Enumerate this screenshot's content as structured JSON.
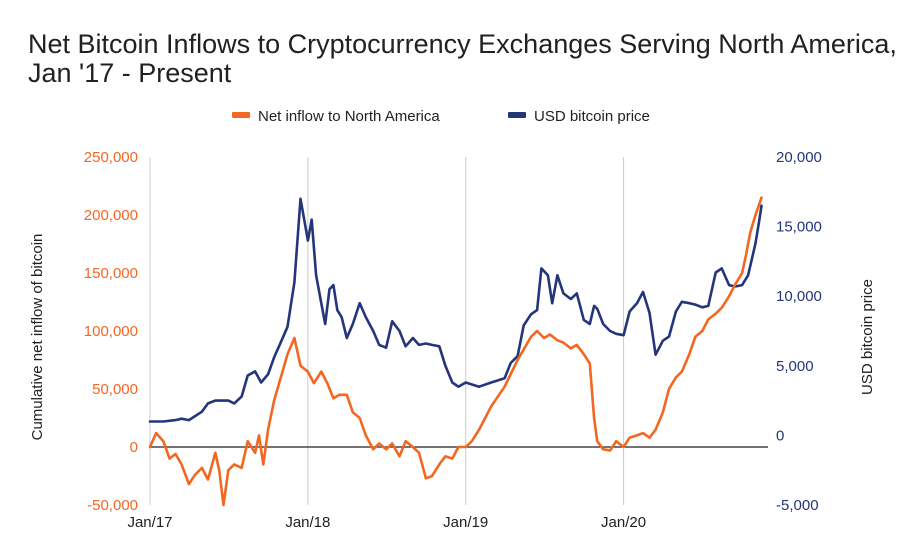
{
  "colors": {
    "inflow": "#f26722",
    "price": "#24357a",
    "grid": "#cccccc",
    "zero": "#222222",
    "text": "#212121"
  },
  "chart_data": {
    "type": "line",
    "title": "Net Bitcoin Inflows to Cryptocurrency Exchanges Serving North America, Jan '17 - Present",
    "ylabel": "Cumulative net inflow of bitcoin",
    "y2label": "USD bitcoin price",
    "xlabel": "",
    "legend_position": "top-center",
    "grid": "vertical at year marks",
    "x_range": [
      "2017-01",
      "2020-11"
    ],
    "ylim": [
      -50000,
      250000
    ],
    "y2lim": [
      -5000,
      20000
    ],
    "x_ticks": [
      "Jan/17",
      "Jan/18",
      "Jan/19",
      "Jan/20"
    ],
    "y_ticks": [
      "-50,000",
      "0",
      "50,000",
      "100,000",
      "150,000",
      "200,000",
      "250,000"
    ],
    "y2_ticks": [
      "-5,000",
      "0",
      "5,000",
      "10,000",
      "15,000",
      "20,000"
    ],
    "series": [
      {
        "name": "Net inflow to North America",
        "axis": "left",
        "points": [
          [
            "2017-01-01",
            0
          ],
          [
            "2017-01-15",
            12000
          ],
          [
            "2017-02-01",
            5000
          ],
          [
            "2017-02-15",
            -10000
          ],
          [
            "2017-03-01",
            -6000
          ],
          [
            "2017-03-15",
            -15000
          ],
          [
            "2017-04-01",
            -32000
          ],
          [
            "2017-04-15",
            -24000
          ],
          [
            "2017-05-01",
            -18000
          ],
          [
            "2017-05-15",
            -28000
          ],
          [
            "2017-06-01",
            -5000
          ],
          [
            "2017-06-10",
            -20000
          ],
          [
            "2017-06-20",
            -50000
          ],
          [
            "2017-07-01",
            -20000
          ],
          [
            "2017-07-15",
            -15000
          ],
          [
            "2017-08-01",
            -18000
          ],
          [
            "2017-08-15",
            5000
          ],
          [
            "2017-09-01",
            -5000
          ],
          [
            "2017-09-10",
            10000
          ],
          [
            "2017-09-20",
            -15000
          ],
          [
            "2017-10-01",
            15000
          ],
          [
            "2017-10-15",
            40000
          ],
          [
            "2017-11-01",
            62000
          ],
          [
            "2017-11-15",
            80000
          ],
          [
            "2017-12-01",
            94000
          ],
          [
            "2017-12-15",
            70000
          ],
          [
            "2018-01-01",
            65000
          ],
          [
            "2018-01-15",
            55000
          ],
          [
            "2018-02-01",
            65000
          ],
          [
            "2018-02-15",
            55000
          ],
          [
            "2018-03-01",
            42000
          ],
          [
            "2018-03-15",
            45000
          ],
          [
            "2018-04-01",
            45000
          ],
          [
            "2018-04-15",
            30000
          ],
          [
            "2018-05-01",
            25000
          ],
          [
            "2018-05-15",
            10000
          ],
          [
            "2018-06-01",
            -2000
          ],
          [
            "2018-06-15",
            3000
          ],
          [
            "2018-07-01",
            -2000
          ],
          [
            "2018-07-15",
            3000
          ],
          [
            "2018-08-01",
            -8000
          ],
          [
            "2018-08-15",
            5000
          ],
          [
            "2018-09-01",
            0
          ],
          [
            "2018-09-15",
            -5000
          ],
          [
            "2018-10-01",
            -27000
          ],
          [
            "2018-10-15",
            -25000
          ],
          [
            "2018-11-01",
            -15000
          ],
          [
            "2018-11-15",
            -8000
          ],
          [
            "2018-12-01",
            -10000
          ],
          [
            "2018-12-15",
            0
          ],
          [
            "2019-01-01",
            0
          ],
          [
            "2019-01-15",
            5000
          ],
          [
            "2019-02-01",
            15000
          ],
          [
            "2019-03-01",
            35000
          ],
          [
            "2019-04-01",
            52000
          ],
          [
            "2019-05-01",
            75000
          ],
          [
            "2019-06-01",
            95000
          ],
          [
            "2019-06-15",
            100000
          ],
          [
            "2019-07-01",
            94000
          ],
          [
            "2019-07-15",
            97000
          ],
          [
            "2019-08-01",
            92000
          ],
          [
            "2019-08-15",
            90000
          ],
          [
            "2019-09-01",
            85000
          ],
          [
            "2019-09-15",
            88000
          ],
          [
            "2019-10-01",
            80000
          ],
          [
            "2019-10-15",
            72000
          ],
          [
            "2019-10-25",
            25000
          ],
          [
            "2019-11-01",
            5000
          ],
          [
            "2019-11-15",
            -2000
          ],
          [
            "2019-12-01",
            -3000
          ],
          [
            "2019-12-15",
            5000
          ],
          [
            "2020-01-01",
            0
          ],
          [
            "2020-01-15",
            8000
          ],
          [
            "2020-02-01",
            10000
          ],
          [
            "2020-02-15",
            12000
          ],
          [
            "2020-03-01",
            8000
          ],
          [
            "2020-03-15",
            15000
          ],
          [
            "2020-04-01",
            30000
          ],
          [
            "2020-04-15",
            50000
          ],
          [
            "2020-05-01",
            60000
          ],
          [
            "2020-05-15",
            65000
          ],
          [
            "2020-06-01",
            80000
          ],
          [
            "2020-06-15",
            95000
          ],
          [
            "2020-07-01",
            100000
          ],
          [
            "2020-07-15",
            110000
          ],
          [
            "2020-08-01",
            115000
          ],
          [
            "2020-08-15",
            120000
          ],
          [
            "2020-09-01",
            130000
          ],
          [
            "2020-09-15",
            140000
          ],
          [
            "2020-10-01",
            150000
          ],
          [
            "2020-10-10",
            165000
          ],
          [
            "2020-10-20",
            185000
          ],
          [
            "2020-11-01",
            200000
          ],
          [
            "2020-11-15",
            215000
          ]
        ]
      },
      {
        "name": "USD bitcoin price",
        "axis": "right",
        "points": [
          [
            "2017-01-01",
            1000
          ],
          [
            "2017-02-01",
            1000
          ],
          [
            "2017-03-01",
            1100
          ],
          [
            "2017-03-15",
            1200
          ],
          [
            "2017-04-01",
            1100
          ],
          [
            "2017-05-01",
            1700
          ],
          [
            "2017-05-15",
            2300
          ],
          [
            "2017-06-01",
            2500
          ],
          [
            "2017-06-15",
            2500
          ],
          [
            "2017-07-01",
            2500
          ],
          [
            "2017-07-15",
            2300
          ],
          [
            "2017-08-01",
            2800
          ],
          [
            "2017-08-15",
            4300
          ],
          [
            "2017-09-01",
            4600
          ],
          [
            "2017-09-15",
            3800
          ],
          [
            "2017-10-01",
            4400
          ],
          [
            "2017-10-15",
            5600
          ],
          [
            "2017-11-01",
            6800
          ],
          [
            "2017-11-15",
            7800
          ],
          [
            "2017-12-01",
            11000
          ],
          [
            "2017-12-15",
            17000
          ],
          [
            "2018-01-01",
            14000
          ],
          [
            "2018-01-10",
            15500
          ],
          [
            "2018-01-20",
            11500
          ],
          [
            "2018-02-01",
            9500
          ],
          [
            "2018-02-10",
            8000
          ],
          [
            "2018-02-20",
            10500
          ],
          [
            "2018-03-01",
            10800
          ],
          [
            "2018-03-10",
            9000
          ],
          [
            "2018-03-20",
            8500
          ],
          [
            "2018-04-01",
            7000
          ],
          [
            "2018-04-15",
            8000
          ],
          [
            "2018-05-01",
            9500
          ],
          [
            "2018-05-15",
            8500
          ],
          [
            "2018-06-01",
            7500
          ],
          [
            "2018-06-15",
            6500
          ],
          [
            "2018-07-01",
            6300
          ],
          [
            "2018-07-15",
            8200
          ],
          [
            "2018-08-01",
            7500
          ],
          [
            "2018-08-15",
            6400
          ],
          [
            "2018-09-01",
            7000
          ],
          [
            "2018-09-15",
            6500
          ],
          [
            "2018-10-01",
            6600
          ],
          [
            "2018-10-15",
            6500
          ],
          [
            "2018-11-01",
            6400
          ],
          [
            "2018-11-15",
            5000
          ],
          [
            "2018-12-01",
            3800
          ],
          [
            "2018-12-15",
            3500
          ],
          [
            "2019-01-01",
            3800
          ],
          [
            "2019-02-01",
            3500
          ],
          [
            "2019-03-01",
            3800
          ],
          [
            "2019-04-01",
            4100
          ],
          [
            "2019-04-15",
            5200
          ],
          [
            "2019-05-01",
            5700
          ],
          [
            "2019-05-15",
            7900
          ],
          [
            "2019-06-01",
            8700
          ],
          [
            "2019-06-15",
            9000
          ],
          [
            "2019-06-25",
            12000
          ],
          [
            "2019-07-10",
            11500
          ],
          [
            "2019-07-20",
            9500
          ],
          [
            "2019-08-01",
            11500
          ],
          [
            "2019-08-15",
            10200
          ],
          [
            "2019-09-01",
            9800
          ],
          [
            "2019-09-15",
            10200
          ],
          [
            "2019-10-01",
            8300
          ],
          [
            "2019-10-15",
            8000
          ],
          [
            "2019-10-25",
            9300
          ],
          [
            "2019-11-01",
            9100
          ],
          [
            "2019-11-15",
            8000
          ],
          [
            "2019-12-01",
            7500
          ],
          [
            "2019-12-15",
            7300
          ],
          [
            "2020-01-01",
            7200
          ],
          [
            "2020-01-15",
            8900
          ],
          [
            "2020-02-01",
            9500
          ],
          [
            "2020-02-15",
            10300
          ],
          [
            "2020-03-01",
            8800
          ],
          [
            "2020-03-15",
            5800
          ],
          [
            "2020-04-01",
            6800
          ],
          [
            "2020-04-15",
            7100
          ],
          [
            "2020-05-01",
            8900
          ],
          [
            "2020-05-15",
            9600
          ],
          [
            "2020-06-01",
            9500
          ],
          [
            "2020-06-15",
            9400
          ],
          [
            "2020-07-01",
            9200
          ],
          [
            "2020-07-15",
            9300
          ],
          [
            "2020-08-01",
            11700
          ],
          [
            "2020-08-15",
            12000
          ],
          [
            "2020-09-01",
            10800
          ],
          [
            "2020-09-15",
            10700
          ],
          [
            "2020-10-01",
            10800
          ],
          [
            "2020-10-15",
            11500
          ],
          [
            "2020-11-01",
            13800
          ],
          [
            "2020-11-10",
            15500
          ],
          [
            "2020-11-15",
            16500
          ]
        ]
      }
    ]
  }
}
